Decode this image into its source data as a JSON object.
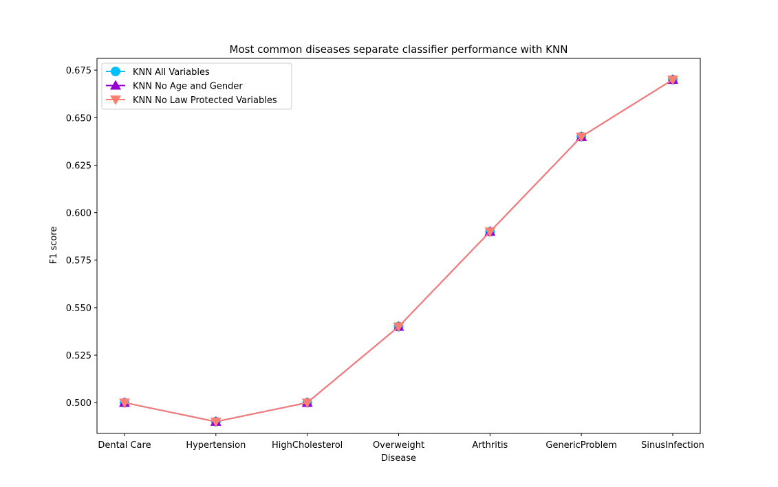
{
  "chart_data": {
    "type": "line",
    "title": "Most common diseases separate classifier performance with KNN",
    "xlabel": "Disease",
    "ylabel": "F1 score",
    "categories": [
      "Dental Care",
      "Hypertension",
      "HighCholesterol",
      "Overweight",
      "Arthritis",
      "GenericProblem",
      "SinusInfection"
    ],
    "ylim": [
      0.4838,
      0.6812
    ],
    "yticks": [
      0.5,
      0.525,
      0.55,
      0.575,
      0.6,
      0.625,
      0.65,
      0.675
    ],
    "ytick_labels": [
      "0.500",
      "0.525",
      "0.550",
      "0.575",
      "0.600",
      "0.625",
      "0.650",
      "0.675"
    ],
    "grid": false,
    "legend_position": "upper-left",
    "series": [
      {
        "name": "KNN All Variables",
        "marker": "circle",
        "color": "#00bfff",
        "values": [
          0.5,
          0.49,
          0.5,
          0.54,
          0.59,
          0.64,
          0.67
        ]
      },
      {
        "name": "KNN No Age and Gender",
        "marker": "triangle-up",
        "color": "#9400d3",
        "values": [
          0.5,
          0.49,
          0.5,
          0.54,
          0.59,
          0.64,
          0.67
        ]
      },
      {
        "name": "KNN No Law Protected Variables",
        "marker": "triangle-down",
        "color": "#fa8072",
        "values": [
          0.5,
          0.49,
          0.5,
          0.54,
          0.59,
          0.64,
          0.67
        ]
      }
    ]
  }
}
